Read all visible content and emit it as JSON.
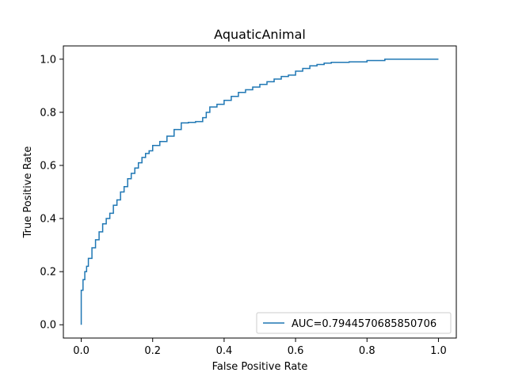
{
  "chart_data": {
    "type": "line",
    "title": "AquaticAnimal",
    "xlabel": "False Positive Rate",
    "ylabel": "True Positive Rate",
    "xlim": [
      -0.05,
      1.05
    ],
    "ylim": [
      -0.05,
      1.05
    ],
    "xticks": [
      0.0,
      0.2,
      0.4,
      0.6,
      0.8,
      1.0
    ],
    "yticks": [
      0.0,
      0.2,
      0.4,
      0.6,
      0.8,
      1.0
    ],
    "xtick_labels": [
      "0.0",
      "0.2",
      "0.4",
      "0.6",
      "0.8",
      "1.0"
    ],
    "ytick_labels": [
      "0.0",
      "0.2",
      "0.4",
      "0.6",
      "0.8",
      "1.0"
    ],
    "grid": false,
    "legend_position": "lower-right",
    "series": [
      {
        "name": "AUC=0.7944570685850706",
        "color": "#1f77b4",
        "x": [
          0.0,
          0.0,
          0.005,
          0.01,
          0.015,
          0.02,
          0.03,
          0.04,
          0.05,
          0.06,
          0.07,
          0.08,
          0.09,
          0.1,
          0.11,
          0.12,
          0.13,
          0.14,
          0.15,
          0.16,
          0.17,
          0.18,
          0.19,
          0.2,
          0.22,
          0.24,
          0.26,
          0.28,
          0.3,
          0.32,
          0.34,
          0.35,
          0.36,
          0.38,
          0.4,
          0.42,
          0.44,
          0.46,
          0.48,
          0.5,
          0.52,
          0.54,
          0.56,
          0.58,
          0.6,
          0.62,
          0.64,
          0.66,
          0.68,
          0.7,
          0.75,
          0.8,
          0.85,
          0.9,
          0.95,
          1.0
        ],
        "y": [
          0.0,
          0.07,
          0.13,
          0.17,
          0.2,
          0.22,
          0.25,
          0.29,
          0.32,
          0.35,
          0.38,
          0.4,
          0.42,
          0.45,
          0.47,
          0.5,
          0.52,
          0.55,
          0.57,
          0.59,
          0.61,
          0.63,
          0.645,
          0.655,
          0.675,
          0.69,
          0.71,
          0.735,
          0.76,
          0.762,
          0.765,
          0.78,
          0.8,
          0.82,
          0.83,
          0.845,
          0.86,
          0.875,
          0.885,
          0.895,
          0.905,
          0.915,
          0.925,
          0.935,
          0.94,
          0.955,
          0.965,
          0.975,
          0.98,
          0.985,
          0.988,
          0.99,
          0.995,
          1.0,
          1.0,
          1.0
        ]
      }
    ]
  }
}
